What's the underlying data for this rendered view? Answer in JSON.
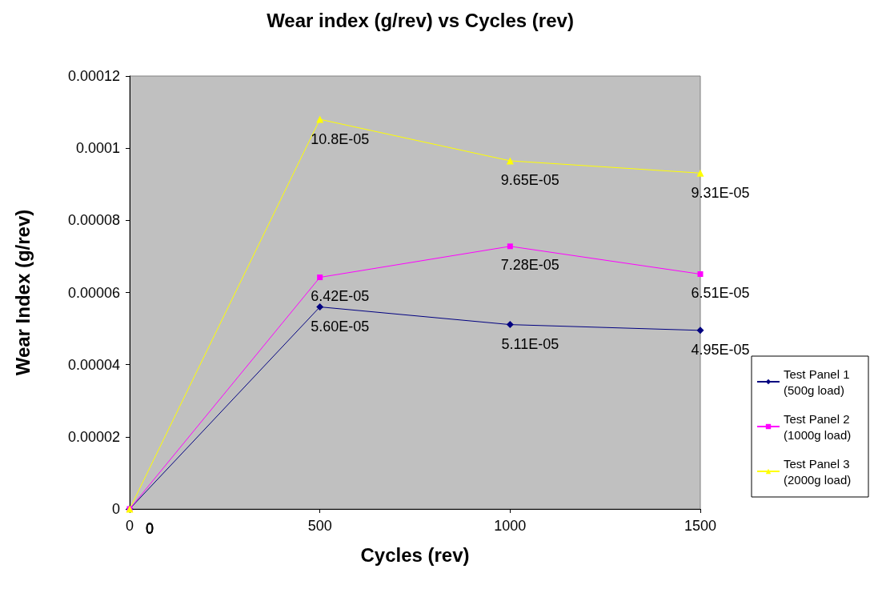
{
  "chart_data": {
    "type": "line",
    "title": "Wear index (g/rev) vs Cycles (rev)",
    "xlabel": "Cycles (rev)",
    "ylabel": "Wear Index (g/rev)",
    "x": [
      0,
      500,
      1000,
      1500
    ],
    "xlim": [
      0,
      1500
    ],
    "xticks": [
      0,
      500,
      1000,
      1500
    ],
    "ylim": [
      0,
      0.00012
    ],
    "yticks": [
      0,
      {
        "value": 2e-05,
        "label": "0.00002"
      },
      {
        "value": 4e-05,
        "label": "0.00004"
      },
      {
        "value": 6e-05,
        "label": "0.00006"
      },
      {
        "value": 8e-05,
        "label": "0.00008"
      },
      0.0001,
      0.00012
    ],
    "grid": false,
    "legend": "right",
    "line_style": "solid",
    "series": [
      {
        "name": "Test Panel 1 (500g load)",
        "color": "#000080",
        "marker": "diamond",
        "values": [
          0,
          5.6e-05,
          5.11e-05,
          4.95e-05
        ],
        "value_labels": [
          "0",
          "5.60E-05",
          "5.11E-05",
          "4.95E-05"
        ]
      },
      {
        "name": "Test Panel 2 (1000g load)",
        "color": "#ff00ff",
        "marker": "square",
        "values": [
          0,
          6.42e-05,
          7.28e-05,
          6.51e-05
        ],
        "value_labels": [
          "0",
          "6.42E-05",
          "7.28E-05",
          "6.51E-05"
        ]
      },
      {
        "name": "Test Panel 3 (2000g load)",
        "color": "#ffff00",
        "marker": "triangle",
        "values": [
          0,
          0.000108,
          9.65e-05,
          9.31e-05
        ],
        "value_labels": [
          "0",
          "10.8E-05",
          "9.65E-05",
          "9.31E-05"
        ]
      }
    ]
  }
}
